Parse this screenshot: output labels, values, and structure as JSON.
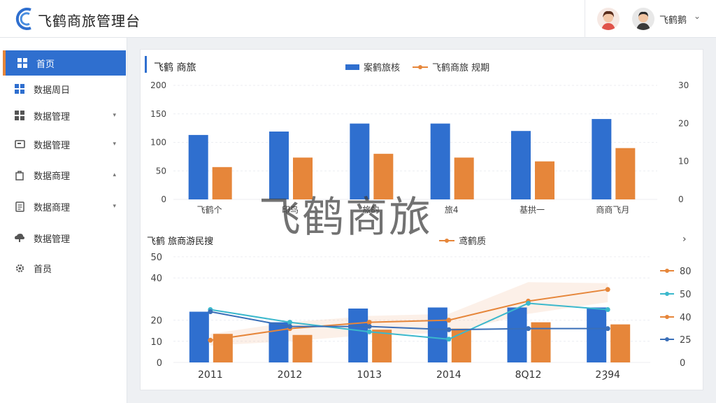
{
  "header": {
    "app_title": "飞鹤商旅管理台",
    "user_name": "飞鹤鹅",
    "chevron": "⌄"
  },
  "sidebar": {
    "items": [
      {
        "label": "首页",
        "icon": "grid-icon",
        "chevron": "",
        "active": true
      },
      {
        "label": "数据周日",
        "icon": "grid-icon",
        "chevron": ""
      },
      {
        "label": "数据管理",
        "icon": "grid-icon",
        "chevron": "▾"
      },
      {
        "label": "数据管理",
        "icon": "message-icon",
        "chevron": "▾"
      },
      {
        "label": "数据商理",
        "icon": "bag-icon",
        "chevron": "▴"
      },
      {
        "label": "数据商理",
        "icon": "document-icon",
        "chevron": "▾"
      },
      {
        "label": "数据管理",
        "icon": "cloud-icon",
        "chevron": ""
      },
      {
        "label": "首员",
        "icon": "gear-icon",
        "chevron": ""
      }
    ]
  },
  "main": {
    "more_arrow": "›",
    "watermark": "飞鹤商旅"
  },
  "colors": {
    "blue": "#2f6fcf",
    "orange": "#e6863a",
    "cyan": "#3bb8cc",
    "navy": "#3a6fb8"
  },
  "chart_data": [
    {
      "type": "bar",
      "title": "飞鹤 商旅",
      "categories": [
        "飞鹤个",
        "印鸟",
        "旅的",
        "旅4",
        "基拱一",
        "商商飞月"
      ],
      "series": [
        {
          "name": "案鹤旅核",
          "axis": "left",
          "values": [
            113,
            119,
            133,
            133,
            120,
            141
          ]
        },
        {
          "name": "飞鹤商旅 规期",
          "axis": "right",
          "values": [
            8.5,
            11,
            12,
            11,
            10,
            13.5
          ]
        }
      ],
      "y_left": {
        "min": 0,
        "max": 200,
        "ticks": [
          0,
          50,
          100,
          150,
          200
        ]
      },
      "y_right": {
        "min": 0,
        "max": 30,
        "ticks": [
          0,
          10,
          20,
          30
        ]
      },
      "grid": true,
      "legend": "top-center"
    },
    {
      "type": "bar",
      "title": "飞鹤 旅商游民搜",
      "categories": [
        "2011",
        "2012",
        "1013",
        "2014",
        "8Q12",
        "2Ȝ94"
      ],
      "series": [
        {
          "name": "",
          "kind": "bar",
          "axis": "left",
          "color": "#2f6fcf",
          "values": [
            24,
            19,
            25.5,
            26,
            26,
            26
          ]
        },
        {
          "name": "",
          "kind": "bar",
          "axis": "left",
          "color": "#e6863a",
          "values": [
            13.5,
            13,
            15.5,
            16,
            19,
            18
          ]
        },
        {
          "name": "鸢鹤质",
          "kind": "line",
          "axis": "left",
          "color": "#e6863a",
          "values": [
            10.5,
            16,
            19,
            20,
            29,
            34.5
          ]
        },
        {
          "name": "",
          "kind": "line",
          "axis": "left",
          "color": "#3bb8cc",
          "values": [
            25,
            19,
            14.5,
            11,
            28,
            25
          ]
        },
        {
          "name": "",
          "kind": "line",
          "axis": "left",
          "color": "#3a6fb8",
          "values": [
            24,
            17,
            17,
            15.5,
            16,
            16
          ]
        }
      ],
      "y_left": {
        "min": 0,
        "max": 50,
        "ticks": [
          0,
          10,
          20,
          40,
          50
        ]
      },
      "y_right_legend": [
        {
          "label": "80",
          "color": "#e6863a"
        },
        {
          "label": "50",
          "color": "#3bb8cc"
        },
        {
          "label": "40",
          "color": "#e6863a"
        },
        {
          "label": "25",
          "color": "#3a6fb8"
        },
        {
          "label": "0",
          "color": ""
        }
      ],
      "grid": true,
      "legend": "top-center"
    }
  ]
}
